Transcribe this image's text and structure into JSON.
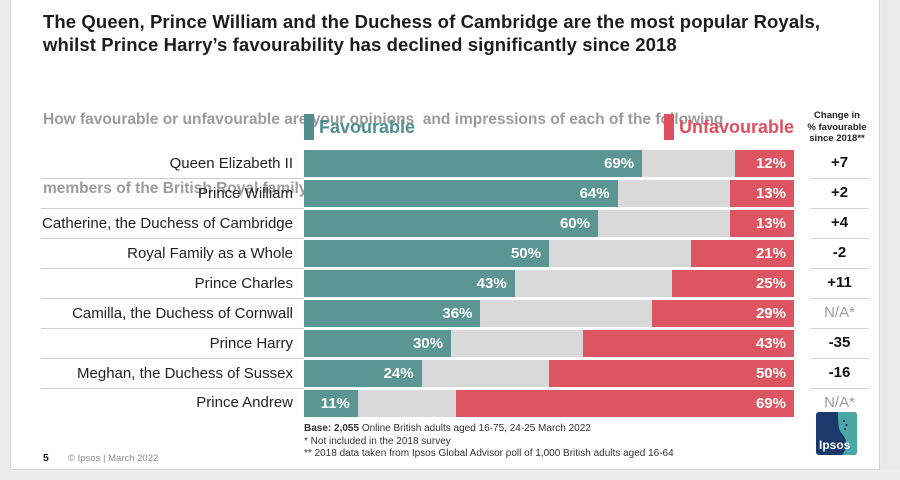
{
  "header": {
    "title_line1": "The Queen, Prince William and the Duchess of Cambridge are the most popular Royals,",
    "title_line2": "whilst Prince Harry’s favourability has declined significantly since 2018",
    "subtitle_line1": "How favourable or unfavourable are your opinions  and impressions of each of the following",
    "subtitle_line2": "members of the British Royal family?"
  },
  "legend": {
    "favourable_label": "Favourable",
    "unfavourable_label": "Unfavourable",
    "favourable_color": "#4f908e",
    "unfavourable_color": "#e04f5f"
  },
  "change_header": {
    "line1": "Change in",
    "line2": "% favourable",
    "line3": "since 2018**"
  },
  "chart_data": {
    "type": "bar",
    "orientation": "horizontal",
    "diverging_stacked": true,
    "title": "How favourable or unfavourable are your opinions and impressions of each of the following members of the British Royal family?",
    "categories": [
      "Queen Elizabeth II",
      "Prince William",
      "Catherine, the Duchess of Cambridge",
      "Royal Family as a Whole",
      "Prince Charles",
      "Camilla, the Duchess of Cornwall",
      "Prince Harry",
      "Meghan, the Duchess of Sussex",
      "Prince Andrew"
    ],
    "series": [
      {
        "name": "Favourable",
        "color": "#5b9694",
        "values": [
          69,
          64,
          60,
          50,
          43,
          36,
          30,
          24,
          11
        ]
      },
      {
        "name": "Unfavourable",
        "color": "#dd5560",
        "values": [
          12,
          13,
          13,
          21,
          25,
          29,
          43,
          50,
          69
        ]
      }
    ],
    "change_since_2018": [
      "+7",
      "+2",
      "+4",
      "-2",
      "+11",
      "N/A*",
      "-35",
      "-16",
      "N/A*"
    ],
    "value_suffix": "%",
    "xlim": [
      0,
      100
    ],
    "track_color": "#d9d9d9",
    "legend_position": "top"
  },
  "footnotes": {
    "base_bold": "Base: 2,055",
    "base_rest": " Online British adults aged 16-75, 24-25 March 2022",
    "note1": "* Not included in the 2018 survey",
    "note2": "** 2018 data taken from Ipsos Global Advisor poll of 1,000 British adults aged 16-64"
  },
  "footer": {
    "page_number": "5",
    "copyright": "© Ipsos | March 2022"
  },
  "logo": {
    "text": "Ipsos",
    "bg_color": "#1b3a6b",
    "accent_color": "#4ba6a6"
  }
}
